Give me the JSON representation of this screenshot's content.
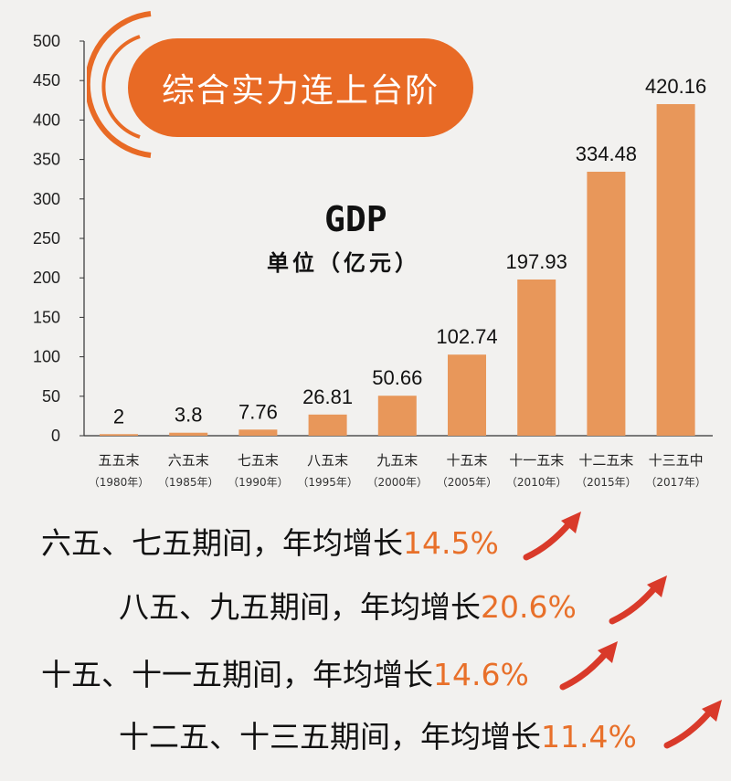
{
  "title": "综合实力连上台阶",
  "gdp_label": "GDP",
  "unit_label": "单位（亿元）",
  "colors": {
    "bar": "#e8975a",
    "accent": "#e86a25",
    "arrow": "#d93a2a",
    "rate_text": "#e8702a"
  },
  "chart_data": {
    "type": "bar",
    "categories": [
      {
        "name": "五五末",
        "year": "（1980年）"
      },
      {
        "name": "六五末",
        "year": "（1985年）"
      },
      {
        "name": "七五末",
        "year": "（1990年）"
      },
      {
        "name": "八五末",
        "year": "（1995年）"
      },
      {
        "name": "九五末",
        "year": "（2000年）"
      },
      {
        "name": "十五末",
        "year": "（2005年）"
      },
      {
        "name": "十一五末",
        "year": "（2010年）"
      },
      {
        "name": "十二五末",
        "year": "（2015年）"
      },
      {
        "name": "十三五中",
        "year": "（2017年）"
      }
    ],
    "values": [
      2,
      3.8,
      7.76,
      26.81,
      50.66,
      102.74,
      197.93,
      334.48,
      420.16
    ],
    "value_labels": [
      "2",
      "3.8",
      "7.76",
      "26.81",
      "50.66",
      "102.74",
      "197.93",
      "334.48",
      "420.16"
    ],
    "ylim": [
      0,
      500
    ],
    "yticks": [
      "0",
      "50",
      "100",
      "150",
      "200",
      "250",
      "300",
      "350",
      "400",
      "450",
      "500"
    ],
    "grid": false
  },
  "growth_notes": [
    {
      "text": "六五、七五期间，年均增长",
      "rate": "14.5%"
    },
    {
      "text": "八五、九五期间，年均增长",
      "rate": "20.6%"
    },
    {
      "text": "十五、十一五期间，年均增长",
      "rate": "14.6%"
    },
    {
      "text": "十二五、十三五期间，年均增长",
      "rate": "11.4%"
    }
  ]
}
